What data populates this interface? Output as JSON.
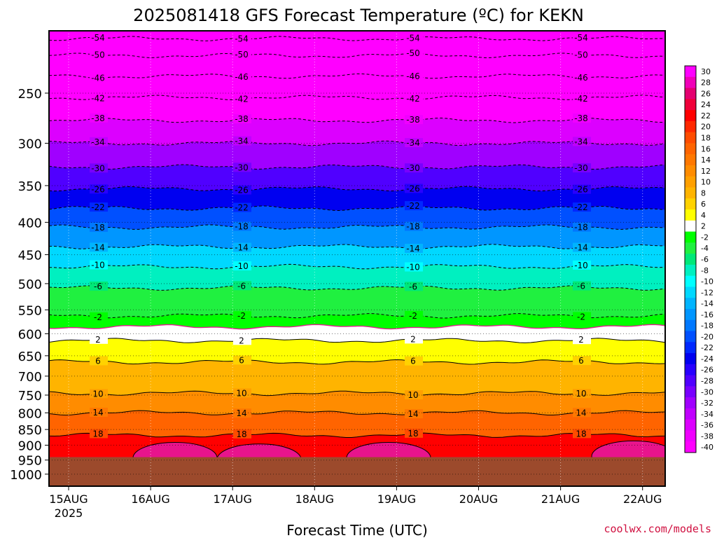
{
  "chart_data": {
    "type": "heatmap",
    "title": "2025081418 GFS Forecast Temperature (ºC) for KEKN",
    "xlabel": "Forecast Time (UTC)",
    "ylabel": "",
    "credit": "coolwx.com/models",
    "x_ticks": [
      "15AUG",
      "16AUG",
      "17AUG",
      "18AUG",
      "19AUG",
      "20AUG",
      "21AUG",
      "22AUG"
    ],
    "x_year": "2025",
    "y_ticks": [
      250,
      300,
      350,
      400,
      450,
      500,
      550,
      600,
      650,
      700,
      750,
      800,
      850,
      900,
      950,
      1000
    ],
    "y_scale": "log-pressure",
    "ylim_hpa": [
      200,
      1050
    ],
    "surface_hpa": 940,
    "colorbar_levels": [
      30,
      28,
      26,
      24,
      22,
      20,
      18,
      16,
      14,
      12,
      10,
      8,
      6,
      4,
      2,
      -2,
      -4,
      -6,
      -8,
      -10,
      -12,
      -14,
      -16,
      -18,
      -20,
      -22,
      -24,
      -26,
      -28,
      -30,
      -32,
      -34,
      -36,
      -38,
      -40
    ],
    "colorbar_colors": [
      "#ff00ff",
      "#f000b8",
      "#e40070",
      "#f0003a",
      "#ff0000",
      "#ff2800",
      "#ff4c00",
      "#ff6400",
      "#ff7800",
      "#ff8c00",
      "#ffa000",
      "#ffb400",
      "#ffd200",
      "#ffff00",
      "#ffffff",
      "#00ff00",
      "#20f040",
      "#00e878",
      "#00f0c0",
      "#00ffff",
      "#00d8ff",
      "#00b4ff",
      "#0096ff",
      "#0078ff",
      "#0050ff",
      "#0028ff",
      "#0000f0",
      "#2800ff",
      "#5000ff",
      "#7800ff",
      "#a000ff",
      "#c000ff",
      "#dc00ff",
      "#f000ff",
      "#ff00ff"
    ],
    "isotherms": [
      {
        "temp": -54,
        "hpa": 205,
        "label": "-54"
      },
      {
        "temp": -50,
        "hpa": 218,
        "label": "-50"
      },
      {
        "temp": -46,
        "hpa": 235,
        "label": "-46"
      },
      {
        "temp": -42,
        "hpa": 254,
        "label": "-42"
      },
      {
        "temp": -38,
        "hpa": 276,
        "label": "-38"
      },
      {
        "temp": -34,
        "hpa": 300,
        "label": "-34"
      },
      {
        "temp": -30,
        "hpa": 327,
        "label": "-30"
      },
      {
        "temp": -26,
        "hpa": 354,
        "label": "-26"
      },
      {
        "temp": -22,
        "hpa": 380,
        "label": "-22"
      },
      {
        "temp": -18,
        "hpa": 407,
        "label": "-18"
      },
      {
        "temp": -14,
        "hpa": 437,
        "label": "-14"
      },
      {
        "temp": -10,
        "hpa": 470,
        "label": "-10"
      },
      {
        "temp": -6,
        "hpa": 508,
        "label": "-6"
      },
      {
        "temp": -2,
        "hpa": 562,
        "label": "-2"
      },
      {
        "temp": 0,
        "hpa": 585,
        "label": ""
      },
      {
        "temp": 2,
        "hpa": 615,
        "label": "2"
      },
      {
        "temp": 6,
        "hpa": 665,
        "label": "6"
      },
      {
        "temp": 10,
        "hpa": 745,
        "label": "10"
      },
      {
        "temp": 14,
        "hpa": 800,
        "label": "14"
      },
      {
        "temp": 18,
        "hpa": 868,
        "label": "18"
      }
    ]
  }
}
